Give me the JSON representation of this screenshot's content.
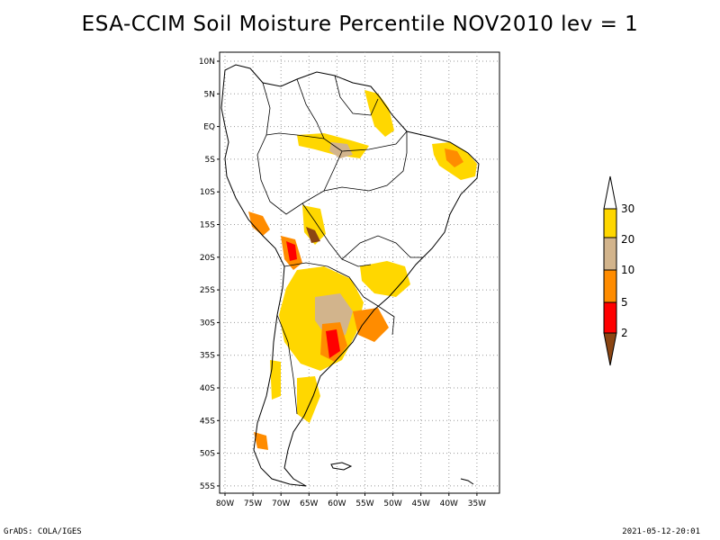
{
  "title": "ESA-CCIM Soil Moisture Percentile NOV2010 lev = 1",
  "map": {
    "lat_labels": [
      "10N",
      "5N",
      "EQ",
      "5S",
      "10S",
      "15S",
      "20S",
      "25S",
      "30S",
      "35S",
      "40S",
      "45S",
      "50S",
      "55S"
    ],
    "lon_labels": [
      "80W",
      "75W",
      "70W",
      "65W",
      "60W",
      "55W",
      "50W",
      "45W",
      "40W",
      "35W"
    ]
  },
  "legend": {
    "labels": [
      "30",
      "20",
      "10",
      "5",
      "2"
    ],
    "colors": [
      "#ffffff",
      "#ffd700",
      "#d2b48c",
      "#ff8c00",
      "#ff0000",
      "#8b4513"
    ]
  },
  "footer": {
    "left": "GrADS: COLA/IGES",
    "right": "2021-05-12-20:01"
  }
}
